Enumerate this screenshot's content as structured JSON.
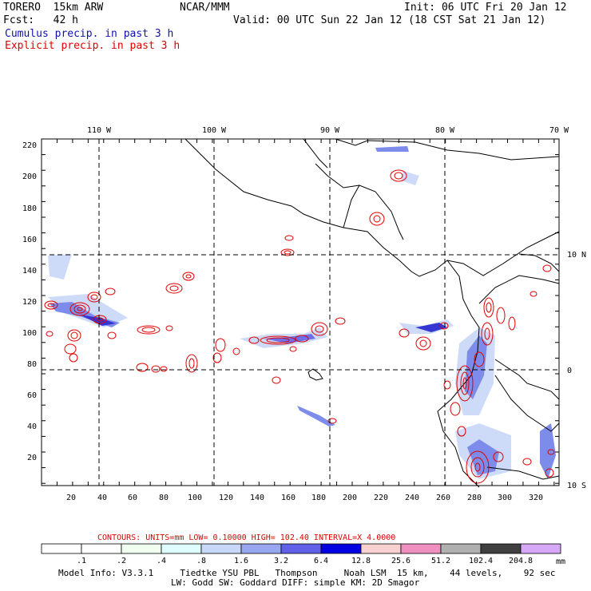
{
  "header": {
    "model": "TORERO  15km ARW",
    "org": "NCAR/MMM",
    "init": "Init: 06 UTC Fri 20 Jan 12",
    "fcst": "Fcst:   42 h",
    "valid": "Valid: 00 UTC Sun 22 Jan 12 (18 CST Sat 21 Jan 12)",
    "cumulus": "Cumulus precip. in past 3 h",
    "explicit": "Explicit precip. in past 3 h"
  },
  "map": {
    "lon_labels": [
      "110 W",
      "100 W",
      "90 W",
      "80 W",
      "70 W"
    ],
    "lat_labels": [
      "10 N",
      "0",
      "10 S"
    ],
    "y_ticks": [
      "220",
      "200",
      "180",
      "160",
      "140",
      "120",
      "100",
      "80",
      "60",
      "40",
      "20"
    ],
    "x_ticks": [
      "20",
      "40",
      "60",
      "80",
      "100",
      "120",
      "140",
      "160",
      "180",
      "200",
      "220",
      "240",
      "260",
      "280",
      "300",
      "320"
    ],
    "colors": {
      "coast": "#000000",
      "explicit_contour": "#e00000",
      "cumulus_light": "#c8d8f8",
      "cumulus_mid": "#7080e8",
      "cumulus_dark": "#2020d0"
    }
  },
  "contours_line": "CONTOURS:  UNITS=mm  LOW= 0.10000      HIGH=  102.40      INTERVAL=X  4.0000",
  "colorbar": {
    "labels": [
      ".1",
      ".2",
      ".4",
      ".8",
      "1.6",
      "3.2",
      "6.4",
      "12.8",
      "25.6",
      "51.2",
      "102.4",
      "204.8"
    ],
    "unit": "mm",
    "colors": [
      "#ffffff",
      "#ffffff",
      "#f0fff0",
      "#e0ffff",
      "#c8d8f8",
      "#98a8f0",
      "#6060e8",
      "#0000e0",
      "#f8d0d0",
      "#f090c0",
      "#b0b0b0",
      "#404040",
      "#d8a8f8"
    ]
  },
  "footer": {
    "line1": "Model Info: V3.3.1     Tiedtke YSU PBL   Thompson     Noah LSM  15 km,    44 levels,    92 sec",
    "line2": "LW: Godd SW: Goddard DIFF: simple KM: 2D Smagor"
  }
}
